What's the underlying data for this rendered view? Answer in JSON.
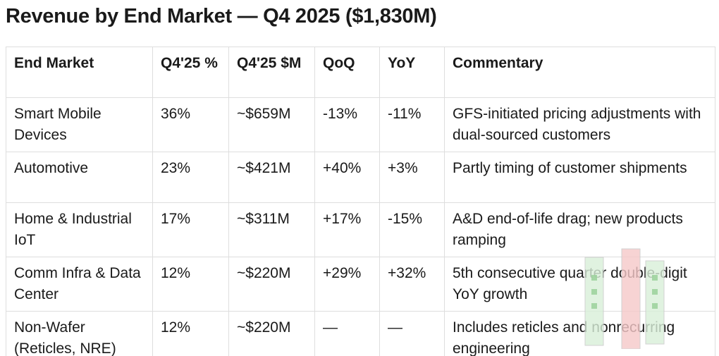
{
  "title": "Revenue by End Market — Q4 2025 ($1,830M)",
  "table": {
    "header": [
      "End Market",
      "Q4'25 %",
      "Q4'25 $M",
      "QoQ",
      "YoY",
      "Commentary"
    ],
    "rows": [
      [
        "Smart Mobile Devices",
        "36%",
        "~$659M",
        "-13%",
        "-11%",
        "GFS-initiated pricing adjustments with dual-sourced customers"
      ],
      [
        "Automotive",
        "23%",
        "~$421M",
        "+40%",
        "+3%",
        "Partly timing of customer shipments"
      ],
      [
        "Home & Industrial IoT",
        "17%",
        "~$311M",
        "+17%",
        "-15%",
        "A&D end-of-life drag; new products ramping"
      ],
      [
        "Comm Infra & Data Center",
        "12%",
        "~$220M",
        "+29%",
        "+32%",
        "5th consecutive quarter double-digit YoY growth"
      ],
      [
        "Non-Wafer (Reticles, NRE)",
        "12%",
        "~$220M",
        "—",
        "—",
        "Includes reticles and nonrecurring engineering"
      ]
    ]
  }
}
